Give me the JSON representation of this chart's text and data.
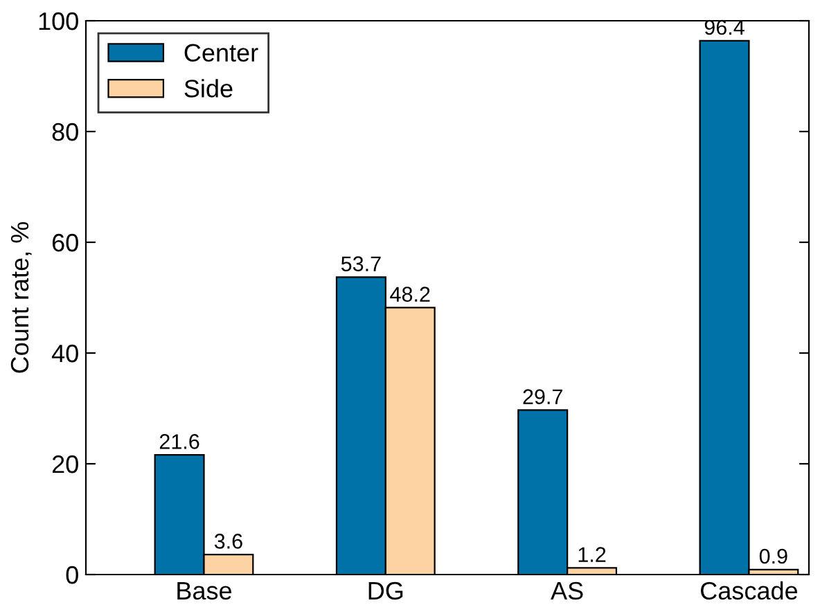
{
  "chart_data": {
    "type": "bar",
    "ylabel": "Count rate, %",
    "categories": [
      "Base",
      "DG",
      "AS",
      "Cascade"
    ],
    "series": [
      {
        "name": "Center",
        "color": "#0072a8",
        "values": [
          21.6,
          53.7,
          29.7,
          96.4
        ]
      },
      {
        "name": "Side",
        "color": "#fdd3a3",
        "values": [
          3.6,
          48.2,
          1.2,
          0.9
        ]
      }
    ],
    "ylim": [
      0,
      100
    ],
    "yticks": [
      0,
      20,
      40,
      60,
      80,
      100
    ],
    "data_labels": true,
    "legend": "top left",
    "grid": false
  }
}
